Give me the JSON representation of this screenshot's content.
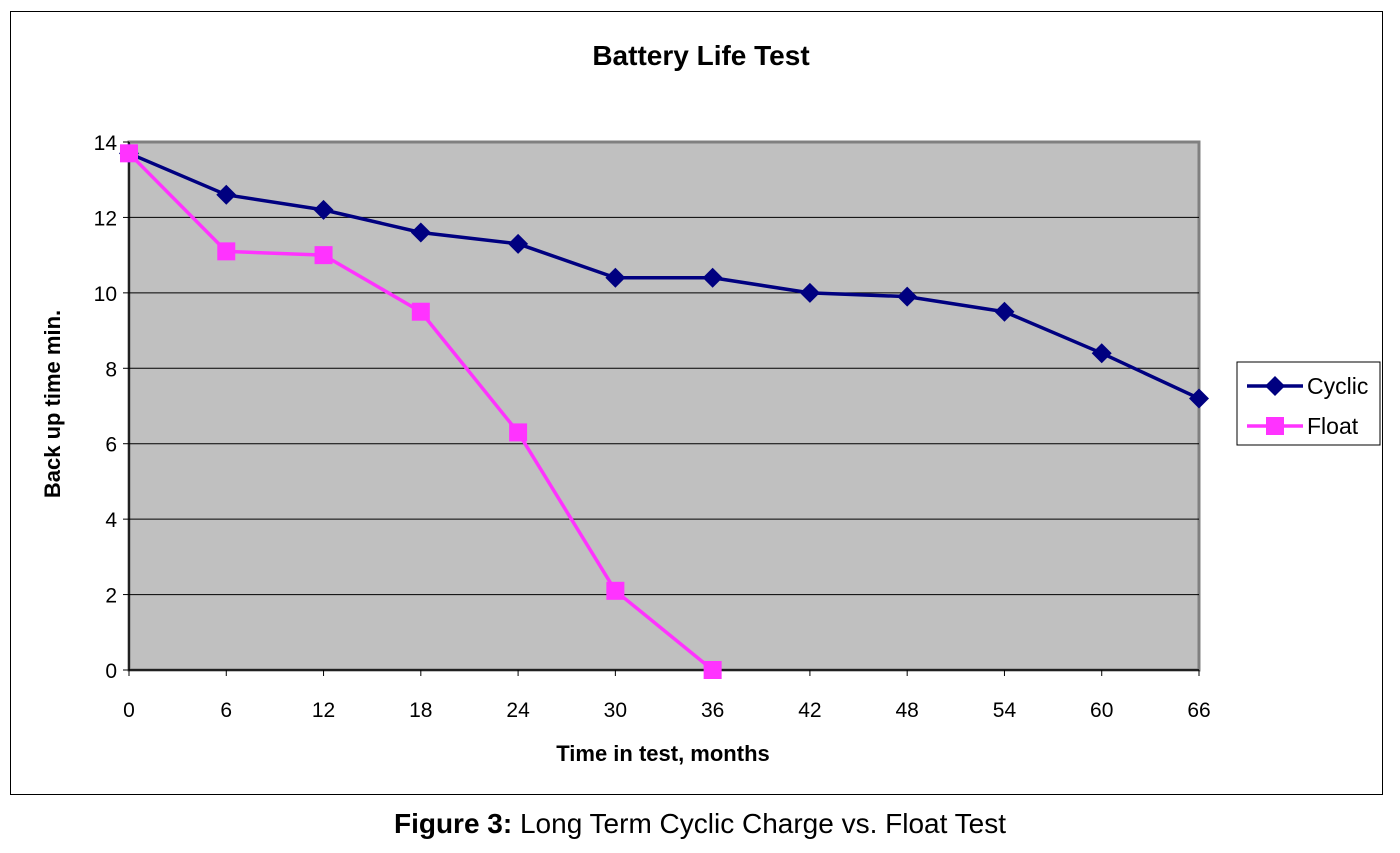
{
  "chart_data": {
    "type": "line",
    "title": "Battery Life Test",
    "xlabel": "Time in test, months",
    "ylabel": "Back up time min.",
    "xlim": [
      0,
      66
    ],
    "ylim": [
      0,
      14
    ],
    "x_ticks": [
      0,
      6,
      12,
      18,
      24,
      30,
      36,
      42,
      48,
      54,
      60,
      66
    ],
    "y_ticks": [
      0,
      2,
      4,
      6,
      8,
      10,
      12,
      14
    ],
    "grid": "horizontal",
    "plot_background": "#c0c0c0",
    "legend": {
      "position": "right"
    },
    "series": [
      {
        "name": "Cyclic",
        "color": "#000080",
        "marker": "diamond",
        "x": [
          0,
          6,
          12,
          18,
          24,
          30,
          36,
          42,
          48,
          54,
          60,
          66
        ],
        "values": [
          13.7,
          12.6,
          12.2,
          11.6,
          11.3,
          10.4,
          10.4,
          10.0,
          9.9,
          9.5,
          8.4,
          7.2
        ]
      },
      {
        "name": "Float",
        "color": "#ff33ff",
        "marker": "square",
        "x": [
          0,
          6,
          12,
          18,
          24,
          30,
          36
        ],
        "values": [
          13.7,
          11.1,
          11.0,
          9.5,
          6.3,
          2.1,
          0
        ]
      }
    ]
  },
  "caption": {
    "label": "Figure 3:",
    "text": " Long Term Cyclic Charge vs. Float Test"
  }
}
